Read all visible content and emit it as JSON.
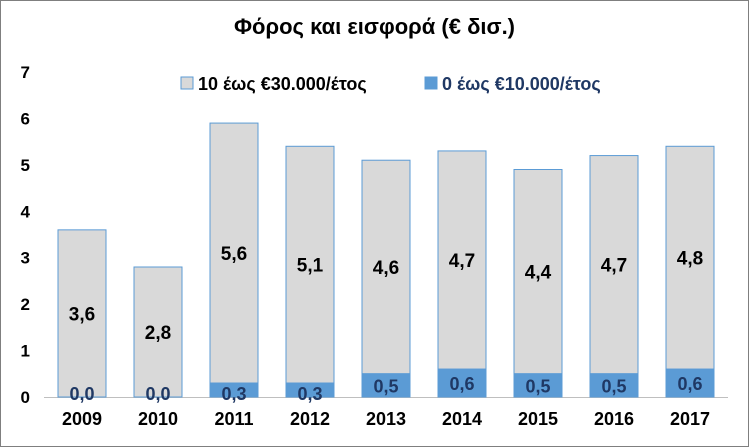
{
  "chart_data": {
    "type": "bar",
    "stacked": true,
    "title": "Φόρος και εισφορά (€ δισ.)",
    "categories": [
      "2009",
      "2010",
      "2011",
      "2012",
      "2013",
      "2014",
      "2015",
      "2016",
      "2017"
    ],
    "series": [
      {
        "name": "0 έως €10.000/έτος",
        "color": "#5b9bd5",
        "values": [
          0.0,
          0.0,
          0.3,
          0.3,
          0.5,
          0.6,
          0.5,
          0.5,
          0.6
        ],
        "labels": [
          "0,0",
          "0,0",
          "0,3",
          "0,3",
          "0,5",
          "0,6",
          "0,5",
          "0,5",
          "0,6"
        ]
      },
      {
        "name": "10 έως €30.000/έτος",
        "color": "#d9d9d9",
        "values": [
          3.6,
          2.8,
          5.6,
          5.1,
          4.6,
          4.7,
          4.4,
          4.7,
          4.8
        ],
        "labels": [
          "3,6",
          "2,8",
          "5,6",
          "5,1",
          "4,6",
          "4,7",
          "4,4",
          "4,7",
          "4,8"
        ]
      }
    ],
    "ylim": [
      0,
      7
    ],
    "yticks": [
      0,
      1,
      2,
      3,
      4,
      5,
      6,
      7
    ],
    "legend_position": "top",
    "grid": false
  }
}
